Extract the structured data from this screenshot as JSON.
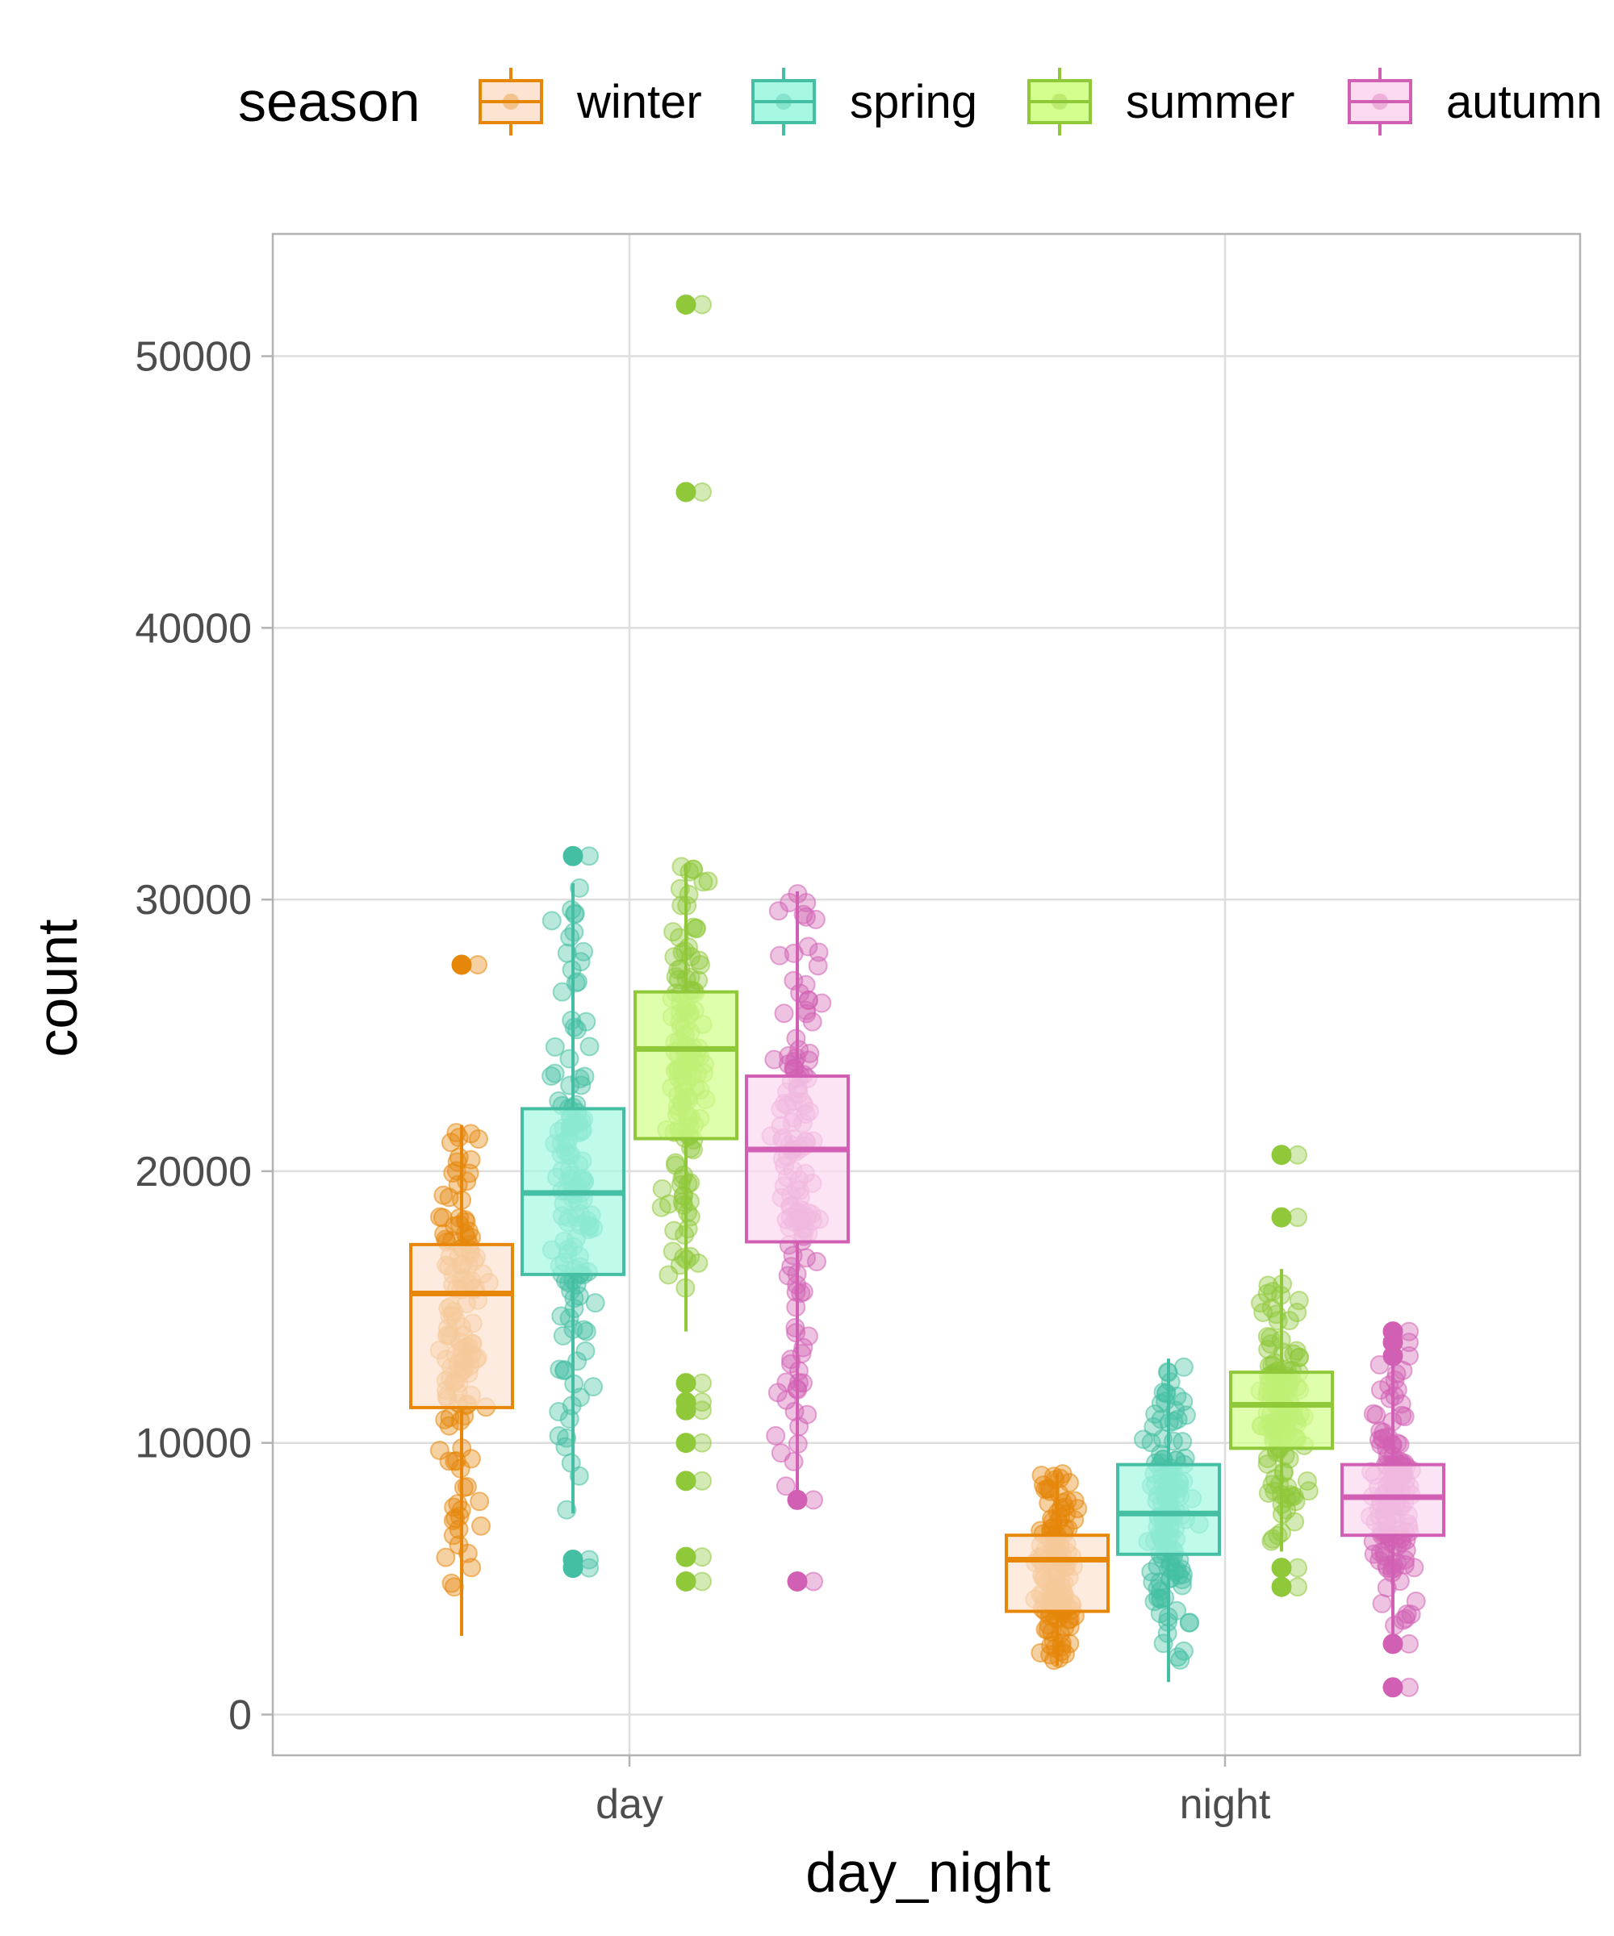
{
  "chart_data": {
    "type": "box",
    "xlabel": "day_night",
    "ylabel": "count",
    "categories": [
      "day",
      "night"
    ],
    "ylim": [
      -1500,
      54500
    ],
    "yticks": [
      0,
      10000,
      20000,
      30000,
      40000,
      50000
    ],
    "grid": true,
    "legend": {
      "title": "season",
      "placement": "top"
    },
    "series": [
      {
        "name": "winter",
        "color": "#E6870A",
        "fill": "#FCE3D2",
        "boxes": [
          {
            "category": "day",
            "whisker_low": 2900,
            "q1": 11300,
            "median": 15500,
            "q3": 17300,
            "whisker_high": 21700,
            "outliers": [
              27600
            ]
          },
          {
            "category": "night",
            "whisker_low": 1800,
            "q1": 3800,
            "median": 5700,
            "q3": 6600,
            "whisker_high": 8900,
            "outliers": []
          }
        ]
      },
      {
        "name": "spring",
        "color": "#45BFA3",
        "fill": "#A6F8E3",
        "boxes": [
          {
            "category": "day",
            "whisker_low": 7400,
            "q1": 16200,
            "median": 19200,
            "q3": 22300,
            "whisker_high": 30600,
            "outliers": [
              31600,
              5400,
              5700
            ]
          },
          {
            "category": "night",
            "whisker_low": 1200,
            "q1": 5900,
            "median": 7400,
            "q3": 9200,
            "whisker_high": 13100,
            "outliers": []
          }
        ]
      },
      {
        "name": "summer",
        "color": "#8FC93A",
        "fill": "#D3FF8E",
        "boxes": [
          {
            "category": "day",
            "whisker_low": 14100,
            "q1": 21200,
            "median": 24500,
            "q3": 26600,
            "whisker_high": 31300,
            "outliers": [
              51900,
              45000,
              12200,
              11500,
              11200,
              10000,
              8600,
              5800,
              4900
            ]
          },
          {
            "category": "night",
            "whisker_low": 6000,
            "q1": 9800,
            "median": 11400,
            "q3": 12600,
            "whisker_high": 16400,
            "outliers": [
              20600,
              18300,
              5400,
              4700
            ]
          }
        ]
      },
      {
        "name": "autumn",
        "color": "#D160B4",
        "fill": "#FCDAF0",
        "boxes": [
          {
            "category": "day",
            "whisker_low": 8000,
            "q1": 17400,
            "median": 20800,
            "q3": 23500,
            "whisker_high": 30300,
            "outliers": [
              7900,
              4900
            ]
          },
          {
            "category": "night",
            "whisker_low": 2600,
            "q1": 6600,
            "median": 8000,
            "q3": 9200,
            "whisker_high": 12900,
            "outliers": [
              14100,
              13700,
              13200,
              2600,
              1000
            ]
          }
        ]
      }
    ]
  }
}
